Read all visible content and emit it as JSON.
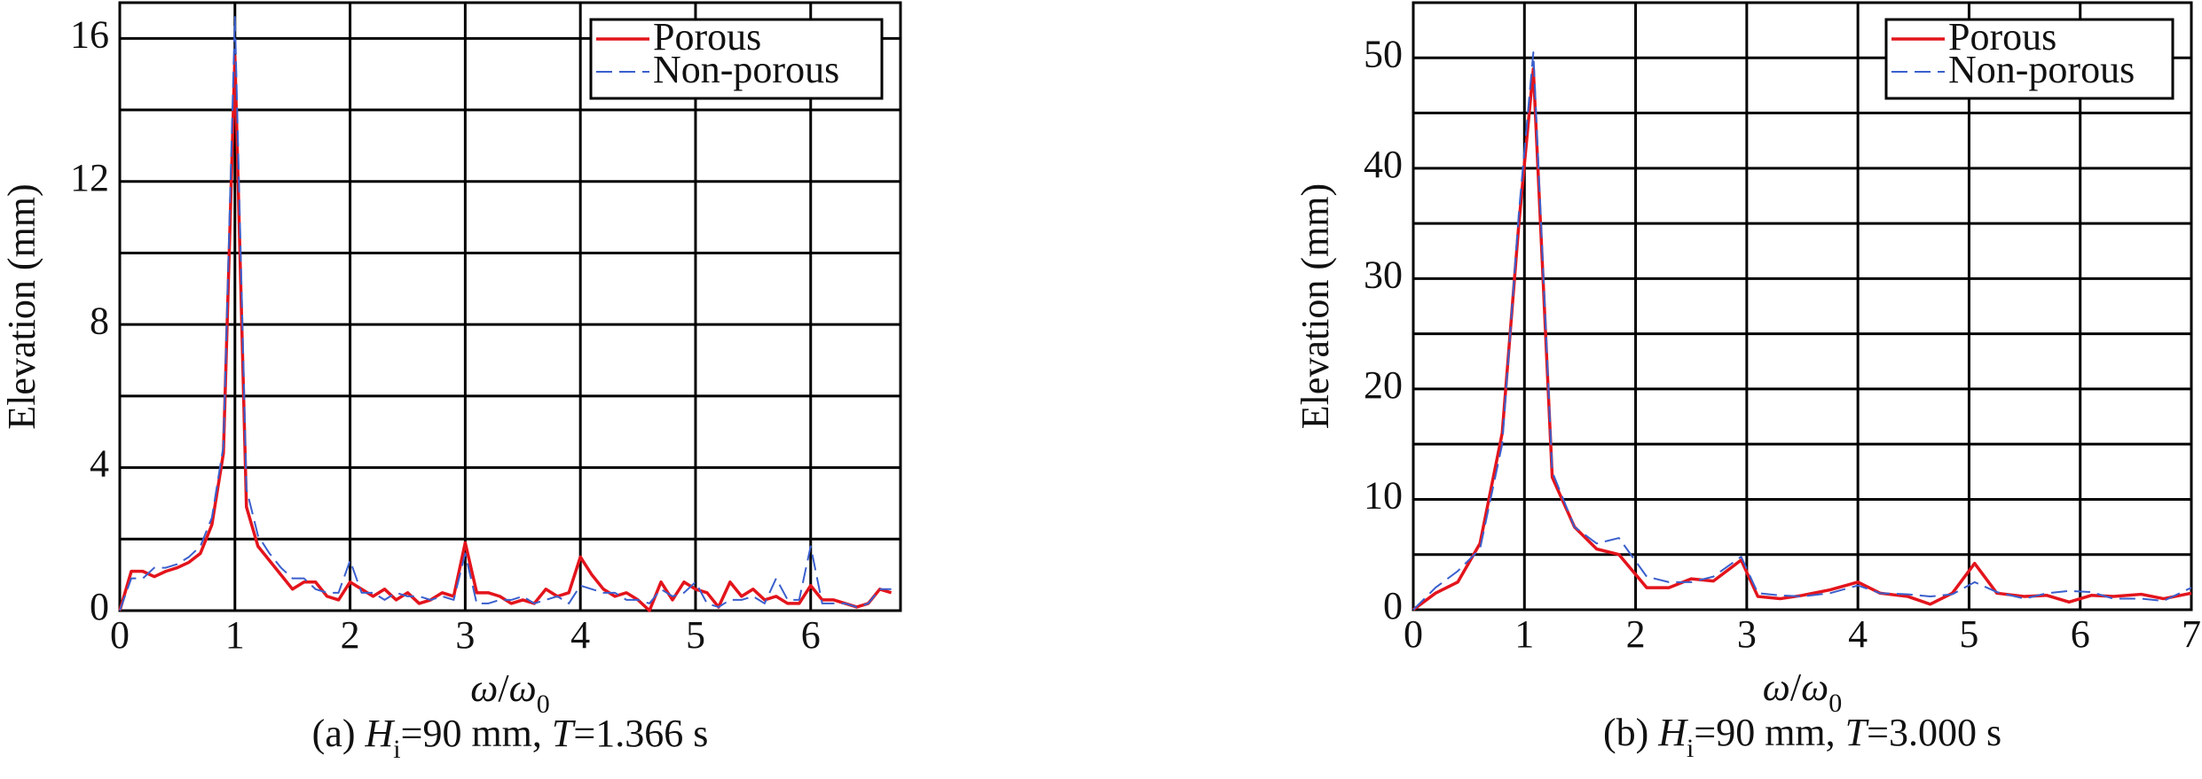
{
  "chart_data": [
    {
      "type": "line",
      "ylabel": "Elevation (mm)",
      "xlabel": [
        {
          "text": "ω",
          "italic": true
        },
        {
          "text": "/"
        },
        {
          "text": "ω",
          "italic": true
        },
        {
          "text": "0",
          "sub": true
        }
      ],
      "caption": [
        {
          "text": "(a) "
        },
        {
          "text": "H",
          "italic": true
        },
        {
          "text": "i",
          "sub": true
        },
        {
          "text": "=90 mm, "
        },
        {
          "text": "T",
          "italic": true
        },
        {
          "text": "=1.366 s"
        }
      ],
      "xlim": [
        0,
        6.78
      ],
      "xticks": [
        0,
        1,
        2,
        3,
        4,
        5,
        6
      ],
      "ylim": [
        0,
        17
      ],
      "yticks": [
        0,
        4,
        8,
        12,
        16
      ],
      "yminor": [
        2,
        6,
        10,
        14
      ],
      "grid": true,
      "legend": "upper right",
      "x": [
        0,
        0.1,
        0.2,
        0.3,
        0.4,
        0.5,
        0.6,
        0.7,
        0.8,
        0.9,
        1.0,
        1.1,
        1.2,
        1.3,
        1.4,
        1.5,
        1.6,
        1.7,
        1.8,
        1.9,
        2.0,
        2.1,
        2.2,
        2.3,
        2.4,
        2.5,
        2.6,
        2.7,
        2.8,
        2.9,
        3.0,
        3.1,
        3.2,
        3.3,
        3.4,
        3.5,
        3.6,
        3.7,
        3.8,
        3.9,
        4.0,
        4.1,
        4.2,
        4.3,
        4.4,
        4.5,
        4.6,
        4.7,
        4.8,
        4.9,
        5.0,
        5.1,
        5.2,
        5.3,
        5.4,
        5.5,
        5.6,
        5.7,
        5.8,
        5.9,
        6.0,
        6.1,
        6.2,
        6.3,
        6.4,
        6.5,
        6.6,
        6.7
      ],
      "series": [
        {
          "name": "Porous",
          "color": "#e3141c",
          "linestyle": "solid",
          "values": [
            0,
            1.1,
            1.1,
            0.95,
            1.1,
            1.2,
            1.35,
            1.6,
            2.4,
            4.4,
            15.5,
            2.9,
            1.8,
            1.4,
            1.0,
            0.6,
            0.8,
            0.8,
            0.4,
            0.3,
            0.8,
            0.6,
            0.4,
            0.6,
            0.3,
            0.5,
            0.2,
            0.3,
            0.5,
            0.4,
            1.9,
            0.5,
            0.5,
            0.4,
            0.2,
            0.3,
            0.2,
            0.6,
            0.4,
            0.5,
            1.5,
            1.0,
            0.6,
            0.4,
            0.5,
            0.3,
            0.0,
            0.8,
            0.3,
            0.8,
            0.6,
            0.5,
            0.1,
            0.8,
            0.4,
            0.6,
            0.3,
            0.4,
            0.2,
            0.2,
            0.7,
            0.3,
            0.3,
            0.2,
            0.1,
            0.2,
            0.6,
            0.5
          ]
        },
        {
          "name": "Non-porous",
          "color": "#3a5fcd",
          "linestyle": "dashed",
          "values": [
            0,
            0.9,
            0.9,
            1.2,
            1.2,
            1.3,
            1.5,
            1.8,
            2.6,
            4.6,
            16.6,
            3.4,
            2.1,
            1.6,
            1.2,
            0.9,
            0.9,
            0.6,
            0.5,
            0.5,
            1.4,
            0.5,
            0.5,
            0.3,
            0.5,
            0.4,
            0.4,
            0.3,
            0.4,
            0.3,
            1.6,
            0.2,
            0.2,
            0.3,
            0.3,
            0.4,
            0.2,
            0.3,
            0.4,
            0.2,
            0.7,
            0.6,
            0.5,
            0.5,
            0.3,
            0.3,
            0.2,
            0.6,
            0.4,
            0.5,
            0.8,
            0.2,
            0.1,
            0.3,
            0.3,
            0.4,
            0.2,
            0.9,
            0.3,
            0.3,
            1.8,
            0.2,
            0.2,
            0.2,
            0.1,
            0.2,
            0.6,
            0.6
          ]
        }
      ]
    },
    {
      "type": "line",
      "ylabel": "Elevation (mm)",
      "xlabel": [
        {
          "text": "ω",
          "italic": true
        },
        {
          "text": "/"
        },
        {
          "text": "ω",
          "italic": true
        },
        {
          "text": "0",
          "sub": true
        }
      ],
      "caption": [
        {
          "text": "(b) "
        },
        {
          "text": "H",
          "italic": true
        },
        {
          "text": "i",
          "sub": true
        },
        {
          "text": "=90 mm, "
        },
        {
          "text": "T",
          "italic": true
        },
        {
          "text": "=3.000 s"
        }
      ],
      "xlim": [
        0,
        7
      ],
      "xticks": [
        0,
        1,
        2,
        3,
        4,
        5,
        6,
        7
      ],
      "ylim": [
        0,
        55
      ],
      "yticks": [
        0,
        10,
        20,
        30,
        40,
        50
      ],
      "yminor": [
        5,
        15,
        25,
        35,
        45
      ],
      "grid": true,
      "legend": "upper right",
      "x": [
        0,
        0.2,
        0.4,
        0.6,
        0.8,
        0.95,
        1.08,
        1.25,
        1.45,
        1.65,
        1.85,
        2.1,
        2.3,
        2.5,
        2.7,
        2.95,
        3.1,
        3.3,
        3.5,
        3.75,
        4.0,
        4.2,
        4.45,
        4.65,
        4.85,
        5.05,
        5.25,
        5.5,
        5.7,
        5.9,
        6.1,
        6.3,
        6.55,
        6.75,
        7.0
      ],
      "series": [
        {
          "name": "Porous",
          "color": "#e3141c",
          "linestyle": "solid",
          "values": [
            0,
            1.5,
            2.5,
            6,
            16,
            35,
            49,
            12,
            7.5,
            5.5,
            5,
            2,
            2,
            2.8,
            2.6,
            4.5,
            1.2,
            1,
            1.3,
            1.8,
            2.5,
            1.5,
            1.2,
            0.5,
            1.5,
            4.2,
            1.5,
            1.2,
            1.3,
            0.7,
            1.3,
            1.2,
            1.4,
            1,
            1.5
          ]
        },
        {
          "name": "Non-porous",
          "color": "#3a5fcd",
          "linestyle": "dashed",
          "values": [
            0,
            2,
            3.5,
            5.5,
            15,
            36,
            50.5,
            12.5,
            7.5,
            6,
            6.5,
            3,
            2.5,
            2.5,
            3,
            4.8,
            1.5,
            1.3,
            1.2,
            1.5,
            2.2,
            1.5,
            1.4,
            1.2,
            1.4,
            2.5,
            1.6,
            1,
            1.5,
            1.7,
            1.6,
            1,
            1,
            0.8,
            2
          ]
        }
      ]
    }
  ]
}
